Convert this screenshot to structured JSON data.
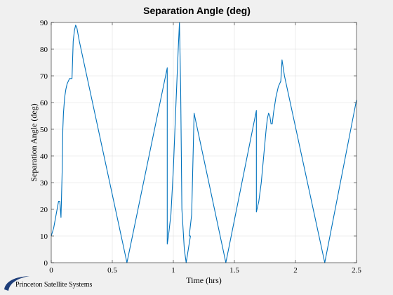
{
  "chart_data": {
    "type": "line",
    "title": "Separation Angle (deg)",
    "xlabel": "Time (hrs)",
    "ylabel": "Separation Angle (deg)",
    "xlim": [
      0,
      2.5
    ],
    "ylim": [
      0,
      90
    ],
    "xticks": [
      0,
      0.5,
      1,
      1.5,
      2,
      2.5
    ],
    "xtick_labels": [
      "0",
      "0.5",
      "1",
      "1.5",
      "2",
      "2.5"
    ],
    "yticks": [
      0,
      10,
      20,
      30,
      40,
      50,
      60,
      70,
      80,
      90
    ],
    "ytick_labels": [
      "0",
      "10",
      "20",
      "30",
      "40",
      "50",
      "60",
      "70",
      "80",
      "90"
    ],
    "grid": true,
    "series": [
      {
        "color": "#0072bd",
        "x": [
          0,
          0.02,
          0.04,
          0.06,
          0.07,
          0.08,
          0.09,
          0.095,
          0.1,
          0.11,
          0.12,
          0.13,
          0.15,
          0.17,
          0.18,
          0.18,
          0.19,
          0.2,
          0.21,
          0.23,
          0.62,
          0.95,
          0.95,
          0.96,
          0.98,
          1.0,
          1.02,
          1.04,
          1.05,
          1.06,
          1.07,
          1.09,
          1.105,
          1.14,
          1.14,
          1.13,
          1.15,
          1.17,
          1.17,
          1.43,
          1.68,
          1.68,
          1.7,
          1.72,
          1.74,
          1.76,
          1.77,
          1.78,
          1.79,
          1.8,
          1.81,
          1.82,
          1.84,
          1.86,
          1.88,
          1.88,
          1.89,
          1.91,
          2.24,
          2.5
        ],
        "y": [
          10,
          13,
          18,
          23,
          23,
          17,
          35,
          50,
          56,
          62,
          65,
          67,
          69,
          69,
          83,
          83,
          87,
          89,
          88,
          83,
          0,
          73,
          7,
          10,
          18,
          35,
          58,
          80,
          90,
          65,
          20,
          5,
          0,
          10,
          10,
          10,
          18,
          56,
          56,
          0,
          57,
          19,
          23,
          30,
          40,
          50,
          54,
          56,
          55,
          52,
          52,
          56,
          62,
          66,
          68,
          68,
          76,
          70,
          0,
          61
        ]
      }
    ]
  },
  "footer": {
    "logo_text": "Princeton Satellite Systems"
  }
}
